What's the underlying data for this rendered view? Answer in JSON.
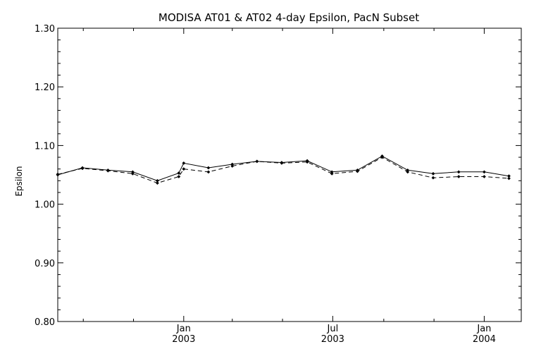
{
  "chart_data": {
    "type": "line",
    "title": "MODISA AT01 & AT02 4-day Epsilon, PacN Subset",
    "xlabel": "",
    "ylabel": "Epsilon",
    "ylim": [
      0.8,
      1.3
    ],
    "yticks": [
      "0.80",
      "0.90",
      "1.00",
      "1.10",
      "1.20",
      "1.30"
    ],
    "xlim": [
      "2002-08-01",
      "2004-02-15"
    ],
    "xticks": [
      {
        "date": "2003-01-01",
        "month": "Jan",
        "year": "2003"
      },
      {
        "date": "2003-07-01",
        "month": "Jul",
        "year": "2003"
      },
      {
        "date": "2004-01-01",
        "month": "Jan",
        "year": "2004"
      }
    ],
    "minor_ticks": [
      "2002-09-01",
      "2002-11-01",
      "2003-03-01",
      "2003-05-01",
      "2003-09-01",
      "2003-11-01"
    ],
    "grid": false,
    "legend": "none",
    "series": [
      {
        "line_style": "solid",
        "color": "#000000",
        "points": [
          [
            "2002-08-01",
            1.05
          ],
          [
            "2002-08-31",
            1.062
          ],
          [
            "2002-10-01",
            1.058
          ],
          [
            "2002-10-31",
            1.055
          ],
          [
            "2002-11-30",
            1.04
          ],
          [
            "2002-12-26",
            1.053
          ],
          [
            "2003-01-01",
            1.07
          ],
          [
            "2003-01-31",
            1.062
          ],
          [
            "2003-03-01",
            1.068
          ],
          [
            "2003-03-31",
            1.073
          ],
          [
            "2003-04-30",
            1.071
          ],
          [
            "2003-05-31",
            1.074
          ],
          [
            "2003-06-30",
            1.055
          ],
          [
            "2003-07-31",
            1.058
          ],
          [
            "2003-08-30",
            1.082
          ],
          [
            "2003-09-30",
            1.058
          ],
          [
            "2003-10-31",
            1.052
          ],
          [
            "2003-12-01",
            1.055
          ],
          [
            "2004-01-01",
            1.055
          ],
          [
            "2004-01-31",
            1.048
          ]
        ]
      },
      {
        "line_style": "dashed",
        "color": "#000000",
        "points": [
          [
            "2002-08-01",
            1.051
          ],
          [
            "2002-08-31",
            1.061
          ],
          [
            "2002-10-01",
            1.057
          ],
          [
            "2002-10-31",
            1.052
          ],
          [
            "2002-11-30",
            1.036
          ],
          [
            "2002-12-26",
            1.047
          ],
          [
            "2003-01-01",
            1.06
          ],
          [
            "2003-01-31",
            1.055
          ],
          [
            "2003-03-01",
            1.065
          ],
          [
            "2003-03-31",
            1.073
          ],
          [
            "2003-04-30",
            1.07
          ],
          [
            "2003-05-31",
            1.072
          ],
          [
            "2003-06-30",
            1.052
          ],
          [
            "2003-07-31",
            1.056
          ],
          [
            "2003-08-30",
            1.08
          ],
          [
            "2003-09-30",
            1.055
          ],
          [
            "2003-10-31",
            1.045
          ],
          [
            "2003-12-01",
            1.047
          ],
          [
            "2004-01-01",
            1.047
          ],
          [
            "2004-01-31",
            1.044
          ]
        ]
      }
    ]
  }
}
